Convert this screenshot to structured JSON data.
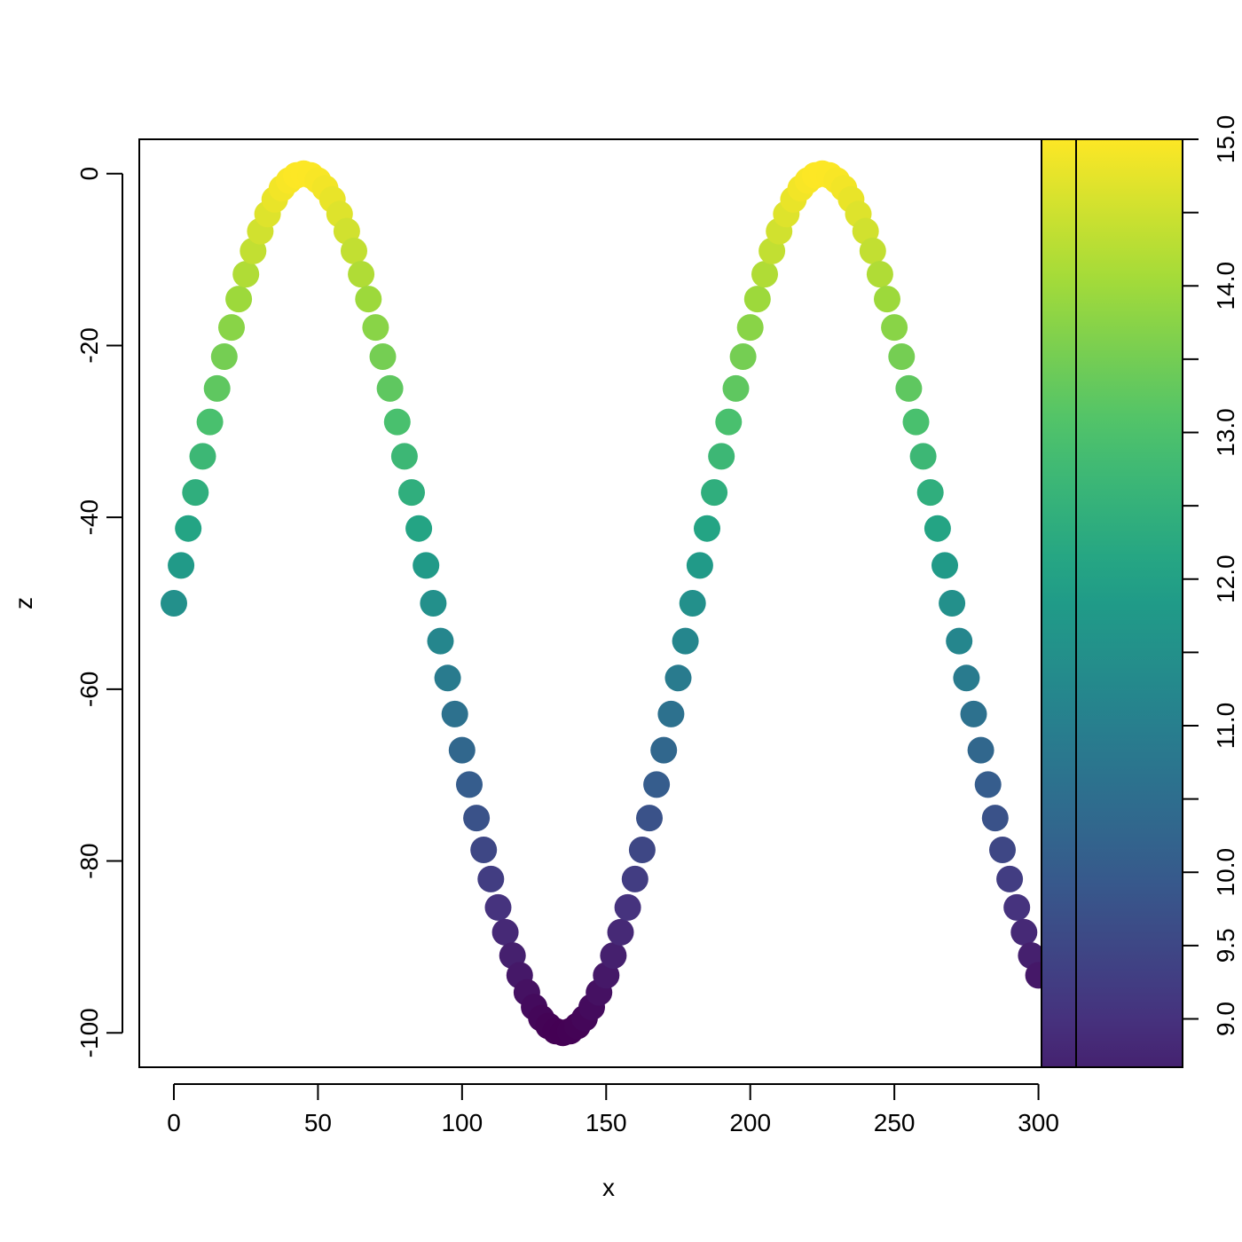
{
  "chart_data": {
    "type": "scatter",
    "title": "",
    "xlabel": "x",
    "ylabel": "z",
    "xlim": [
      -12,
      350
    ],
    "ylim": [
      -104,
      4
    ],
    "x_ticks": [
      0,
      50,
      100,
      150,
      200,
      250,
      300
    ],
    "x_tick_labels": [
      "0",
      "50",
      "100",
      "150",
      "200",
      "250",
      "300"
    ],
    "y_ticks": [
      0,
      -20,
      -40,
      -60,
      -80,
      -100
    ],
    "y_tick_labels": [
      "0",
      "-20",
      "-40",
      "-60",
      "-80",
      "-100"
    ],
    "x": [
      0,
      2.5,
      5,
      7.5,
      10,
      12.5,
      15,
      17.5,
      20,
      22.5,
      25,
      27.5,
      30,
      32.5,
      35,
      37.5,
      40,
      42.5,
      45,
      47.5,
      50,
      52.5,
      55,
      57.5,
      60,
      62.5,
      65,
      67.5,
      70,
      72.5,
      75,
      77.5,
      80,
      82.5,
      85,
      87.5,
      90,
      92.5,
      95,
      97.5,
      100,
      102.5,
      105,
      107.5,
      110,
      112.5,
      115,
      117.5,
      120,
      122.5,
      125,
      127.5,
      130,
      132.5,
      135,
      137.5,
      140,
      142.5,
      145,
      147.5,
      150,
      152.5,
      155,
      157.5,
      160,
      162.5,
      165,
      167.5,
      170,
      172.5,
      175,
      177.5,
      180,
      182.5,
      185,
      187.5,
      190,
      192.5,
      195,
      197.5,
      200,
      202.5,
      205,
      207.5,
      210,
      212.5,
      215,
      217.5,
      220,
      222.5,
      225,
      227.5,
      230,
      232.5,
      235,
      237.5,
      240,
      242.5,
      245,
      247.5,
      250,
      252.5,
      255,
      257.5,
      260,
      262.5,
      265,
      267.5,
      270,
      272.5,
      275,
      277.5,
      280,
      282.5,
      285,
      287.5,
      290,
      292.5,
      295,
      297.5,
      300
    ],
    "z": [
      -50.0,
      -45.6,
      -41.3,
      -37.1,
      -32.9,
      -28.9,
      -25.0,
      -21.3,
      -17.9,
      -14.6,
      -11.7,
      -9.0,
      -6.7,
      -4.7,
      -3.0,
      -1.7,
      -0.8,
      -0.2,
      0.0,
      -0.2,
      -0.8,
      -1.7,
      -3.0,
      -4.7,
      -6.7,
      -9.0,
      -11.7,
      -14.6,
      -17.9,
      -21.3,
      -25.0,
      -28.9,
      -32.9,
      -37.1,
      -41.3,
      -45.6,
      -50.0,
      -54.4,
      -58.7,
      -62.9,
      -67.1,
      -71.1,
      -75.0,
      -78.7,
      -82.1,
      -85.4,
      -88.3,
      -91.0,
      -93.3,
      -95.3,
      -97.0,
      -98.3,
      -99.2,
      -99.8,
      -100.0,
      -99.8,
      -99.2,
      -98.3,
      -97.0,
      -95.3,
      -93.3,
      -91.0,
      -88.3,
      -85.4,
      -82.1,
      -78.7,
      -75.0,
      -71.1,
      -67.1,
      -62.9,
      -58.7,
      -54.4,
      -50.0,
      -45.6,
      -41.3,
      -37.1,
      -32.9,
      -28.9,
      -25.0,
      -21.3,
      -17.9,
      -14.6,
      -11.7,
      -9.0,
      -6.7,
      -4.7,
      -3.0,
      -1.7,
      -0.8,
      -0.2,
      0.0,
      -0.2,
      -0.8,
      -1.7,
      -3.0,
      -4.7,
      -6.7,
      -9.0,
      -11.7,
      -14.6,
      -17.9,
      -21.3,
      -25.0,
      -28.9,
      -32.9,
      -37.1,
      -41.3,
      -45.6,
      -50.0,
      -54.4,
      -58.7,
      -62.9,
      -67.1,
      -71.1,
      -75.0,
      -78.7,
      -82.1,
      -85.4,
      -88.3,
      -91.0,
      -93.3
    ],
    "color_scale": {
      "palette": "viridis",
      "stops": [
        "#440154",
        "#46327E",
        "#365C8D",
        "#277F8E",
        "#1FA187",
        "#4AC16D",
        "#9FDA3A",
        "#FDE725"
      ],
      "range": [
        8.0,
        15.0
      ],
      "lim": [
        8.67,
        15.0
      ],
      "ticks": [
        9.0,
        9.5,
        10.0,
        11.0,
        12.0,
        13.0,
        14.0,
        15.0
      ],
      "tick_labels": [
        "9.0",
        "9.5",
        "10.0",
        "11.0",
        "12.0",
        "13.0",
        "14.0",
        "15.0"
      ],
      "minor_ticks": [
        10.5,
        11.5,
        12.5,
        13.5,
        14.5
      ]
    },
    "grid": false,
    "legend": "right"
  }
}
